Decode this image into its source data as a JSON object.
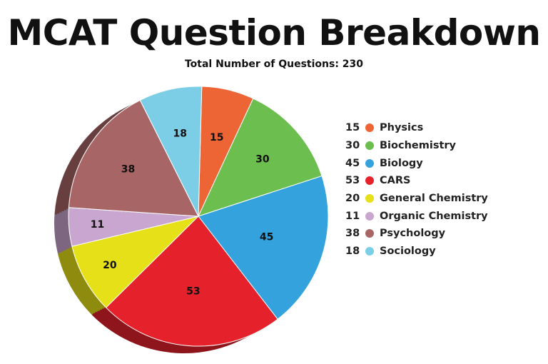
{
  "header": {
    "title": "MCAT Question Breakdown",
    "subtitle": "Total Number of Questions: 230"
  },
  "chart_data": {
    "type": "pie",
    "title": "MCAT Question Breakdown",
    "subtitle": "Total Number of Questions: 230",
    "total": 230,
    "legend_position": "right",
    "slices": [
      {
        "name": "Physics",
        "value": 15,
        "color": "#EE6535"
      },
      {
        "name": "Biochemistry",
        "value": 30,
        "color": "#6CBF4E"
      },
      {
        "name": "Biology",
        "value": 45,
        "color": "#33A2DD"
      },
      {
        "name": "CARS",
        "value": 53,
        "color": "#E5222B"
      },
      {
        "name": "General Chemistry",
        "value": 20,
        "color": "#E5E017"
      },
      {
        "name": "Organic Chemistry",
        "value": 11,
        "color": "#C9A6CF"
      },
      {
        "name": "Psychology",
        "value": 38,
        "color": "#A86566"
      },
      {
        "name": "Sociology",
        "value": 18,
        "color": "#7CCDE6"
      }
    ]
  }
}
